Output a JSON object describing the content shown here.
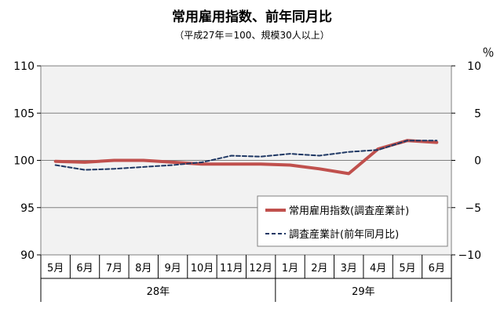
{
  "chart_data": {
    "type": "line",
    "title": "常用雇用指数、前年同月比",
    "subtitle": "（平成27年＝100、規模30人以上）",
    "categories": [
      "5月",
      "6月",
      "7月",
      "8月",
      "9月",
      "10月",
      "11月",
      "12月",
      "1月",
      "2月",
      "3月",
      "4月",
      "5月",
      "6月"
    ],
    "year_groups": [
      {
        "label": "28年",
        "start": 0,
        "end": 7
      },
      {
        "label": "29年",
        "start": 8,
        "end": 13
      }
    ],
    "left_axis": {
      "ylim": [
        90,
        110
      ],
      "ticks": [
        90,
        95,
        100,
        105,
        110
      ]
    },
    "right_axis": {
      "ylim": [
        -10,
        10
      ],
      "ticks": [
        -10,
        -5,
        0,
        5,
        10
      ],
      "unit": "％"
    },
    "grid": true,
    "legend_position": "lower-right",
    "series": [
      {
        "name": "常用雇用指数(調査産業計)",
        "axis": "left",
        "style": "solid",
        "color": "#c0504d",
        "values": [
          99.9,
          99.8,
          100.0,
          100.0,
          99.8,
          99.6,
          99.6,
          99.6,
          99.5,
          99.1,
          98.6,
          101.2,
          102.1,
          101.9
        ]
      },
      {
        "name": "調査産業計(前年同月比)",
        "axis": "right",
        "style": "dashed",
        "color": "#1f3864",
        "values": [
          -0.5,
          -1.0,
          -0.9,
          -0.7,
          -0.5,
          -0.2,
          0.5,
          0.4,
          0.7,
          0.5,
          0.9,
          1.1,
          2.1,
          2.1
        ]
      }
    ]
  }
}
